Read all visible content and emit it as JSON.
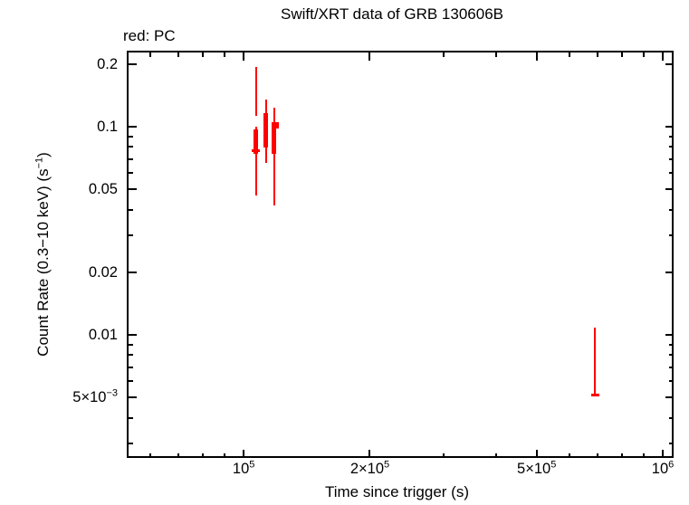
{
  "figure": {
    "title": "Swift/XRT data of GRB 130606B",
    "legend": "red: PC",
    "xlabel": "Time since trigger (s)",
    "ylabel_prefix": "Count Rate (0.3−10 keV) (s",
    "ylabel_sup": "−1",
    "ylabel_suffix": ")",
    "colors": {
      "data": "#ff0000",
      "axis": "#000000",
      "background": "#ffffff"
    }
  },
  "chart_data": {
    "type": "scatter",
    "subtype": "errorbar-light-curve",
    "title": "Swift/XRT data of GRB 130606B",
    "xlabel": "Time since trigger (s)",
    "ylabel": "Count Rate (0.3−10 keV) (s−1)",
    "xscale": "log",
    "yscale": "log",
    "xlim": [
      52600,
      1056000
    ],
    "ylim": [
      0.00259,
      0.2296
    ],
    "grid": false,
    "legend_position": "top-left-outside",
    "x_major_ticks": [
      {
        "value": 100000,
        "base": "10",
        "exp": "5"
      },
      {
        "value": 200000,
        "base": "2×10",
        "exp": "5"
      },
      {
        "value": 500000,
        "base": "5×10",
        "exp": "5"
      },
      {
        "value": 1000000,
        "base": "10",
        "exp": "6"
      }
    ],
    "x_minor_ticks": [
      60000,
      70000,
      80000,
      90000,
      300000,
      400000,
      600000,
      700000,
      800000,
      900000
    ],
    "y_major_ticks": [
      {
        "value": 0.2,
        "base": "0.2"
      },
      {
        "value": 0.1,
        "base": "0.1"
      },
      {
        "value": 0.05,
        "base": "0.05"
      },
      {
        "value": 0.02,
        "base": "0.02"
      },
      {
        "value": 0.01,
        "base": "0.01"
      },
      {
        "value": 0.005,
        "base": "5×10",
        "exp": "−3"
      }
    ],
    "y_minor_ticks": [
      0.09,
      0.08,
      0.07,
      0.06,
      0.04,
      0.03,
      0.009,
      0.008,
      0.007,
      0.006,
      0.004,
      0.003
    ],
    "series": [
      {
        "name": "PC",
        "color": "#ff0000",
        "points": [
          {
            "t": 107000,
            "rate": 0.148,
            "rate_hi": 0.194,
            "rate_lo": 0.113
          },
          {
            "t": 106900,
            "rate": 0.0767,
            "rate_hi": 0.1,
            "rate_lo": 0.0467,
            "marker_hi": 0.097,
            "marker_lo": 0.074,
            "cap": 0.0767
          },
          {
            "t": 113000,
            "rate": 0.0966,
            "rate_hi": 0.135,
            "rate_lo": 0.067,
            "marker_hi": 0.1162,
            "marker_lo": 0.0794
          },
          {
            "t": 118100,
            "rate": 0.088,
            "rate_hi": 0.1234,
            "rate_lo": 0.0419,
            "marker_hi": 0.1051,
            "marker_lo": 0.074
          },
          {
            "t": 119900,
            "rate": 0.1015,
            "rate_hi": 0.1051,
            "rate_lo": 0.0981,
            "marker_hi": 0.1051,
            "marker_lo": 0.0981
          },
          {
            "t": 690000,
            "rate": 0.00514,
            "rate_hi": 0.01083,
            "rate_lo": 0.00506,
            "cap": 0.00514
          }
        ]
      }
    ]
  }
}
